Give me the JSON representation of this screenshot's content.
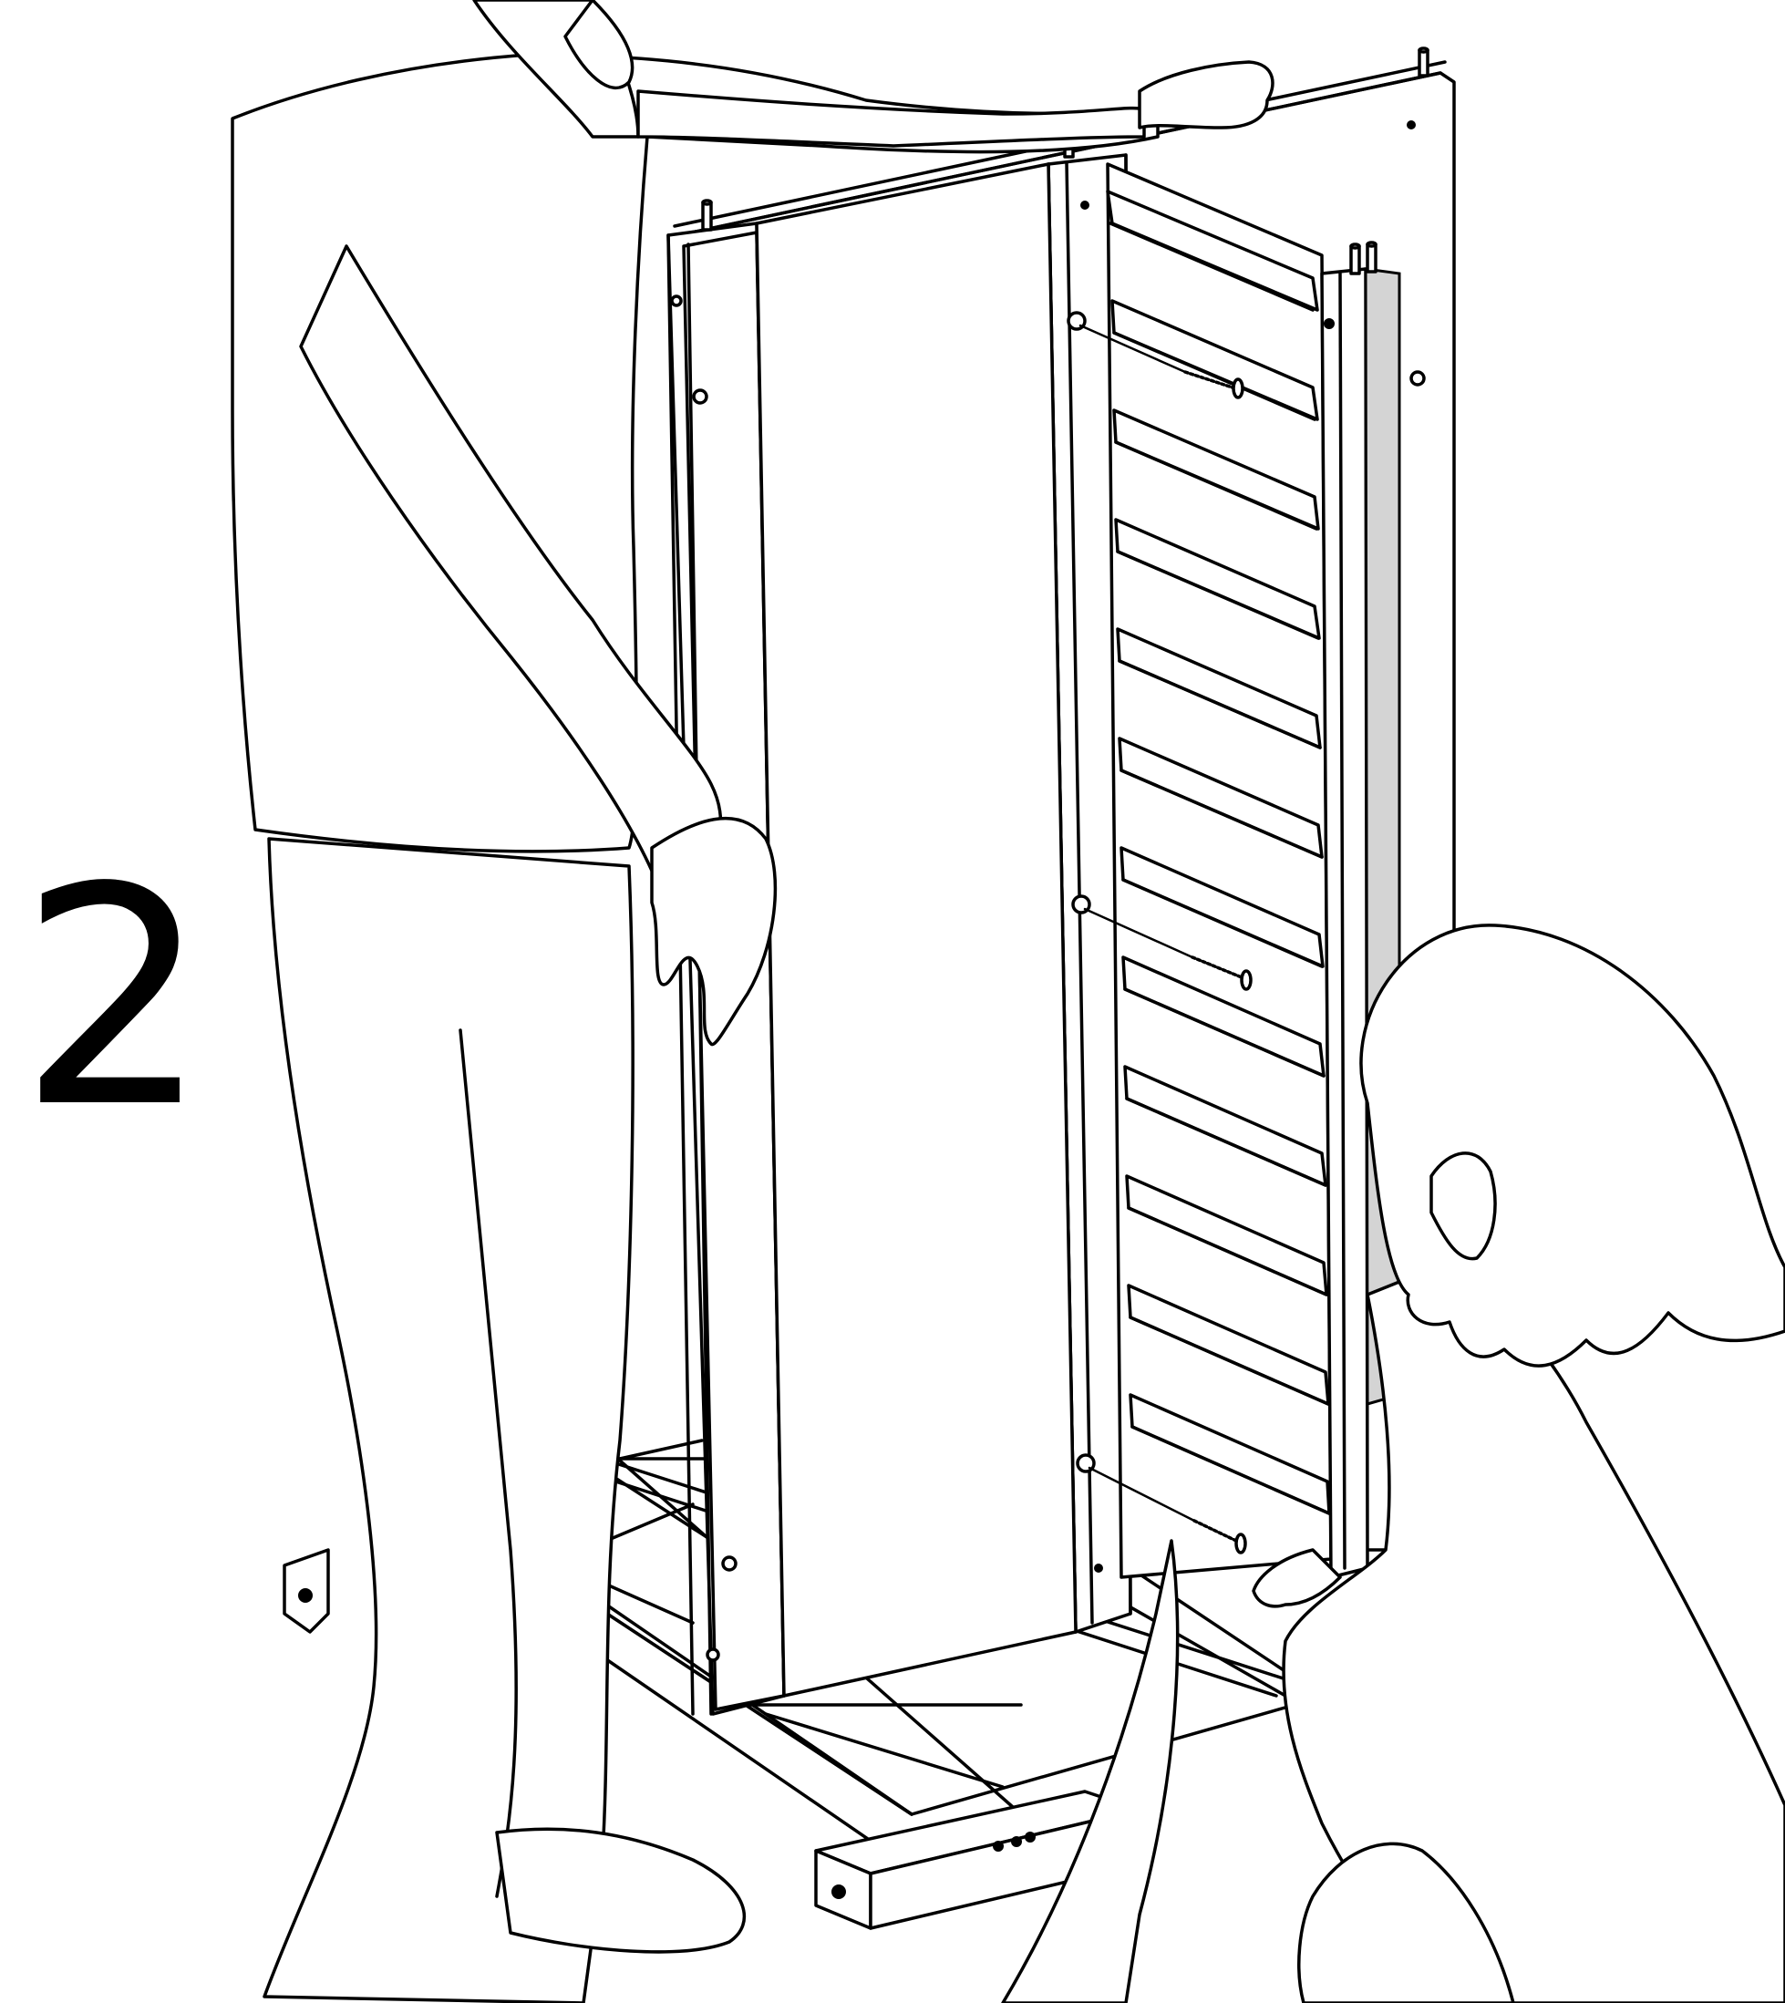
{
  "step": {
    "number": "2"
  },
  "colors": {
    "line": "#000000",
    "background": "#ffffff",
    "shade": "#d4d4d4"
  },
  "icons": {
    "adult": "adult-person-icon",
    "child": "child-person-icon",
    "screw": "screw-icon",
    "dowel": "wooden-dowel-icon",
    "arrow": "curved-arrow-icon"
  },
  "parts": {
    "slat_count": 12,
    "screw_count": 3,
    "dowel_count": 5
  }
}
